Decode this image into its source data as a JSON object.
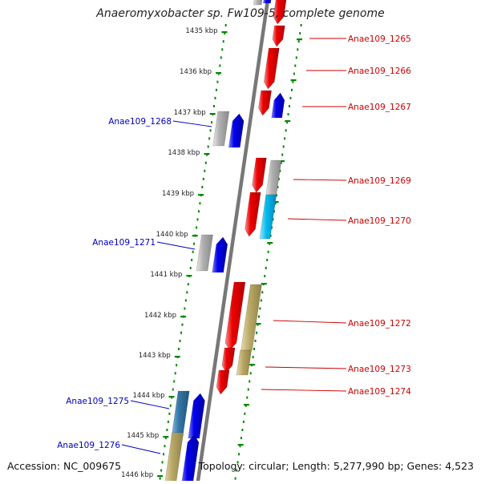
{
  "title": "Anaeromyxobacter sp. Fw109-5, complete genome",
  "accession": "Accession: NC_009675",
  "topology": "Topology: circular; Length: 5,277,990 bp; Genes: 4,523",
  "colors": {
    "forward_gene": "#ee0000",
    "reverse_gene": "#0000dd",
    "pseudo_gray": "#aaaaaa",
    "cyan": "#00bbee",
    "olive": "#bbaa66",
    "steel": "#3377aa",
    "label_red": "#cc0000",
    "label_blue": "#0000bb",
    "tick_green": "#008800"
  },
  "scale_labels": [
    "1435 kbp",
    "1436 kbp",
    "1437 kbp",
    "1438 kbp",
    "1439 kbp",
    "1440 kbp",
    "1441 kbp",
    "1442 kbp",
    "1443 kbp",
    "1444 kbp",
    "1445 kbp",
    "1446 kbp"
  ],
  "gene_labels_right": [
    "Anae109_1265",
    "Anae109_1266",
    "Anae109_1267",
    "Anae109_1269",
    "Anae109_1270",
    "Anae109_1272",
    "Anae109_1273",
    "Anae109_1274"
  ],
  "gene_labels_left": [
    "Anae109_1268",
    "Anae109_1271",
    "Anae109_1275",
    "Anae109_1276"
  ]
}
